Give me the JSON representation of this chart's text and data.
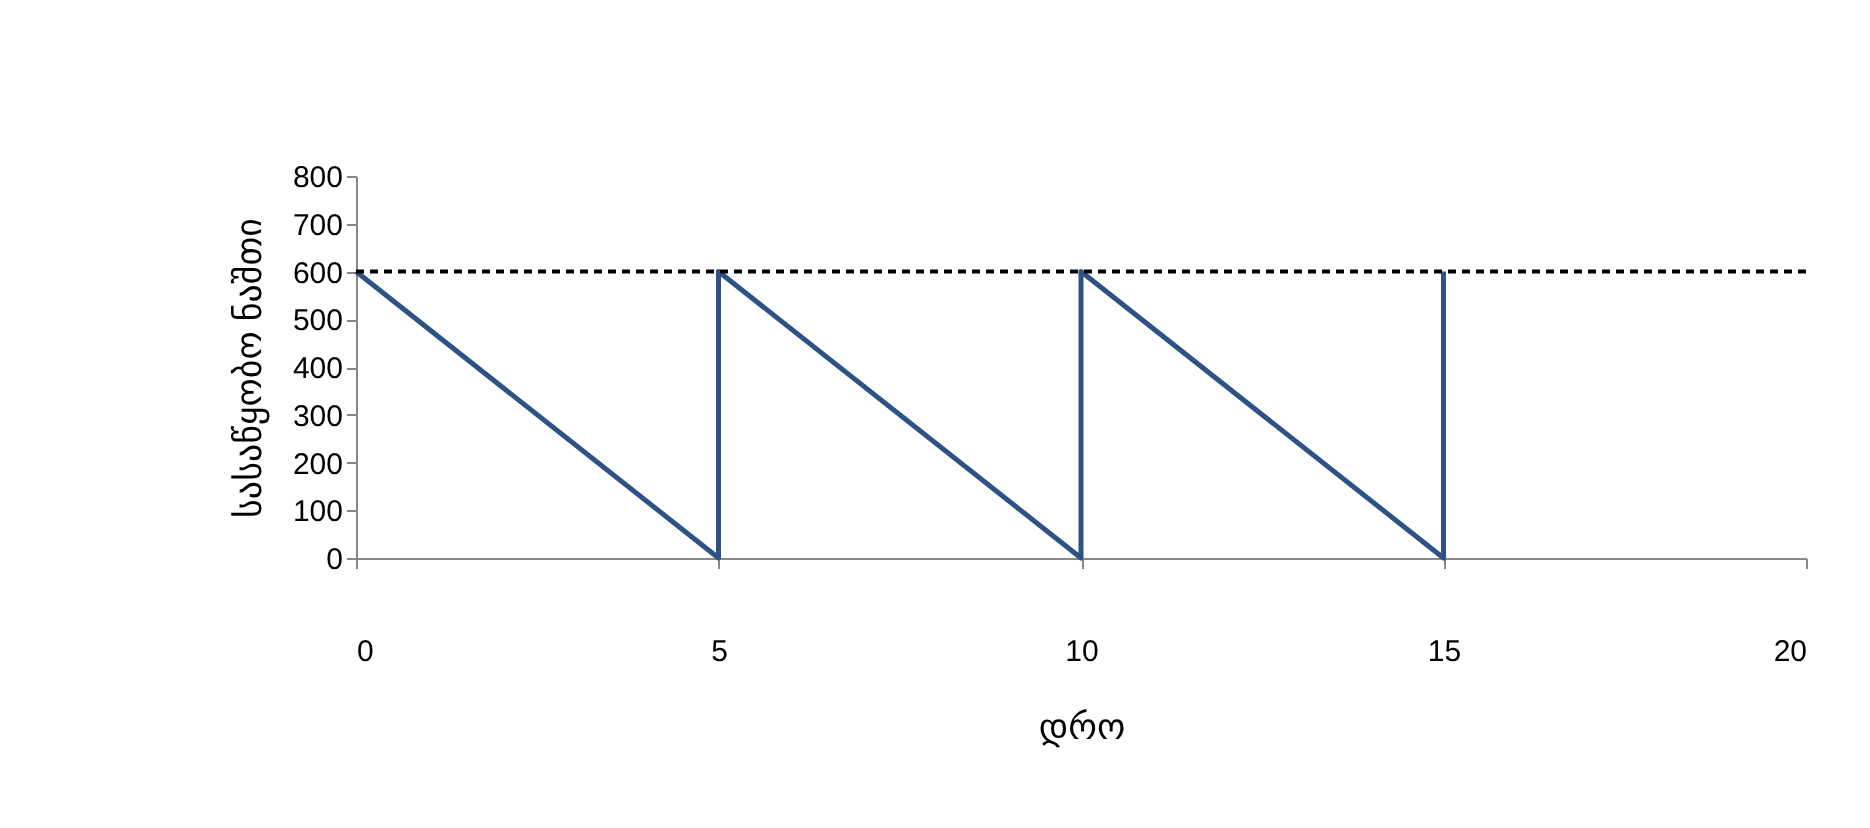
{
  "chart_data": {
    "type": "line",
    "xlabel": "დრო",
    "ylabel": "სასაწყობო ნაშთი",
    "x": [
      0,
      5,
      5,
      10,
      10,
      15,
      15
    ],
    "series": [
      {
        "color": "#2e5283",
        "values": [
          600,
          0,
          600,
          0,
          600,
          0,
          600
        ]
      }
    ],
    "xlim": [
      0,
      20
    ],
    "xticks": [
      0,
      5,
      10,
      15,
      20
    ],
    "ylim": [
      0,
      800
    ],
    "yticks": [
      0,
      100,
      200,
      300,
      400,
      500,
      600,
      700,
      800
    ],
    "ref_lines": [
      {
        "axis": "y",
        "value": 600,
        "color": "#000000",
        "line_style": "dashed"
      }
    ],
    "grid": false,
    "marker": "none",
    "line_style": "solid"
  }
}
